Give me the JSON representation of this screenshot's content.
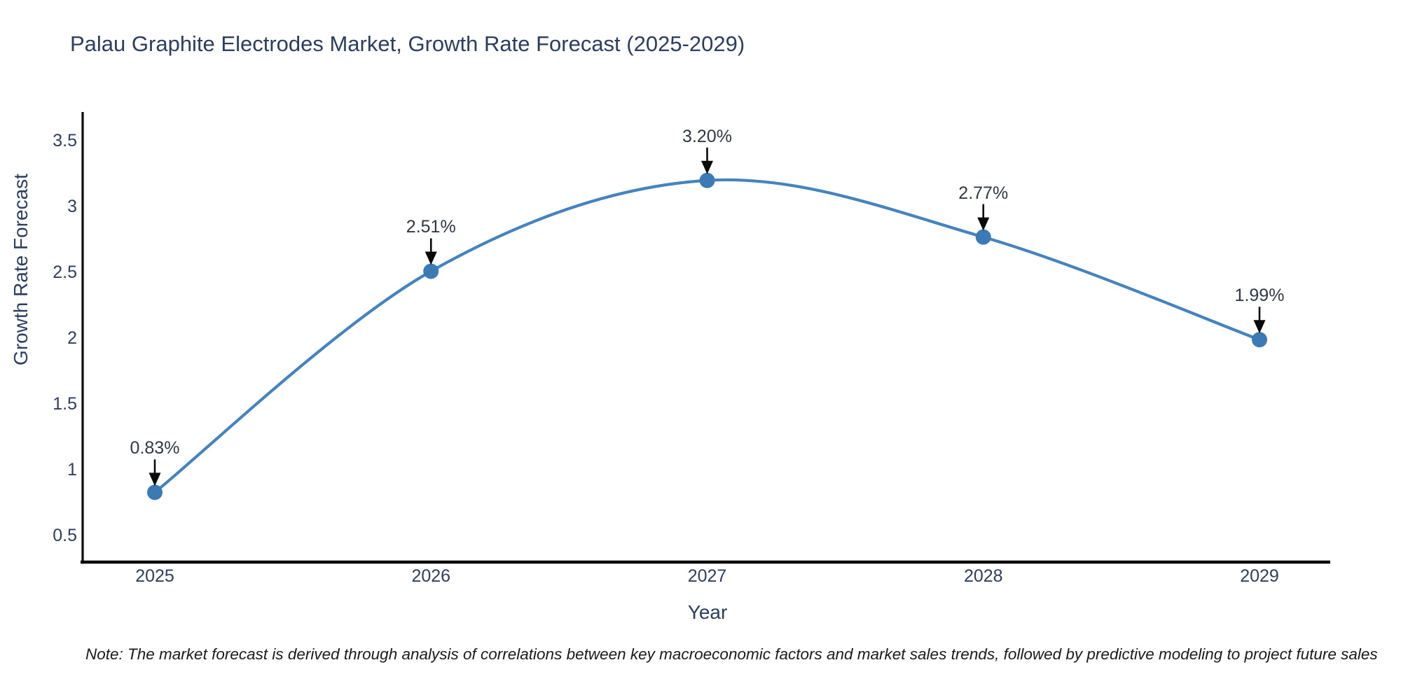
{
  "chart_data": {
    "type": "line",
    "title": "Palau Graphite Electrodes Market, Growth Rate Forecast (2025-2029)",
    "xlabel": "Year",
    "ylabel": "Growth Rate Forecast",
    "categories": [
      "2025",
      "2026",
      "2027",
      "2028",
      "2029"
    ],
    "x": [
      2025,
      2026,
      2027,
      2028,
      2029
    ],
    "values": [
      0.83,
      2.51,
      3.2,
      2.77,
      1.99
    ],
    "point_labels": [
      "0.83%",
      "2.51%",
      "3.20%",
      "2.77%",
      "1.99%"
    ],
    "y_ticks": [
      0.5,
      1,
      1.5,
      2,
      2.5,
      3,
      3.5
    ],
    "y_tick_labels": [
      "0.5",
      "1",
      "1.5",
      "2",
      "2.5",
      "3",
      "3.5"
    ],
    "ylim": [
      0.3,
      3.72
    ],
    "grid": false,
    "legend": false,
    "line_color": "#4483bd",
    "marker_color": "#3c7ab6",
    "axis_color": "#0a0a0a",
    "annotation_arrow_color": "#0a0a0a"
  },
  "note": "Note: The market forecast is derived through analysis of correlations between key macroeconomic factors and market sales trends, followed by predictive modeling to project future sales"
}
